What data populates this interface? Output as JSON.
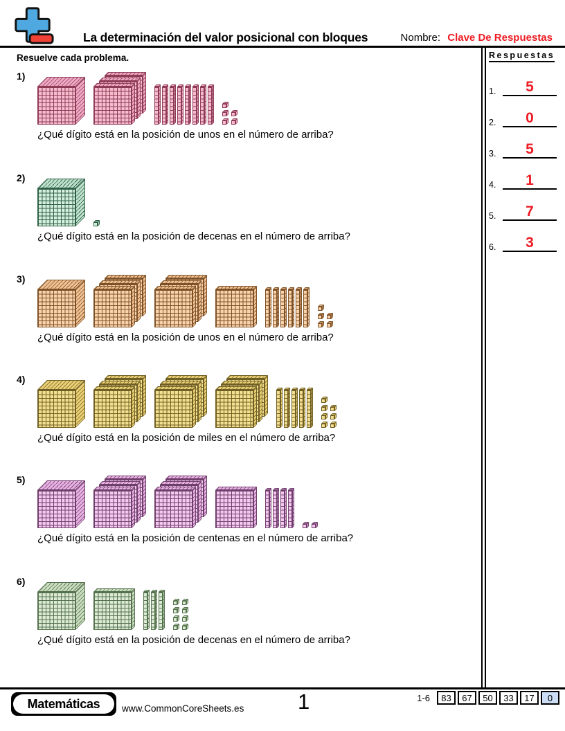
{
  "theme": {
    "accent_red": "#ED1C24",
    "score_highlight_bg": "#CBDDF4",
    "logo_plus_blue": "#4FA8DF",
    "logo_minus_red": "#EF4136"
  },
  "header": {
    "title": "La determinación del valor posicional con bloques",
    "name_label": "Nombre:",
    "name_value": "Clave De Respuestas"
  },
  "instruction": "Resuelve cada problema.",
  "answers_panel": {
    "title": "Respuestas",
    "items": [
      {
        "num": "1.",
        "value": "5"
      },
      {
        "num": "2.",
        "value": "0"
      },
      {
        "num": "3.",
        "value": "5"
      },
      {
        "num": "4.",
        "value": "1"
      },
      {
        "num": "5.",
        "value": "7"
      },
      {
        "num": "6.",
        "value": "3"
      }
    ]
  },
  "problems": [
    {
      "num": "1)",
      "question": "¿Qué dígito está en la posición de unos en el número de arriba?",
      "depicted_number": 1385,
      "blocks": {
        "thousand_cubes": 1,
        "hundred_flat_groups": [
          3
        ],
        "ten_rods": 8,
        "one_units": 5,
        "colors": {
          "face": "#F6BCD0",
          "shade": "#EFA9C4",
          "line": "#8E3B55"
        }
      }
    },
    {
      "num": "2)",
      "question": "¿Qué dígito está en la posición de decenas en el número de arriba?",
      "depicted_number": 1001,
      "blocks": {
        "thousand_cubes": 1,
        "hundred_flat_groups": [],
        "ten_rods": 0,
        "one_units": 1,
        "colors": {
          "face": "#D5EFDE",
          "shade": "#BFE3CD",
          "line": "#2F5F47"
        }
      }
    },
    {
      "num": "3)",
      "question": "¿Qué dígito está en la posición de unos en el número de arriba?",
      "depicted_number": 1765,
      "blocks": {
        "thousand_cubes": 1,
        "hundred_flat_groups": [
          3,
          3,
          1
        ],
        "ten_rods": 6,
        "one_units": 5,
        "colors": {
          "face": "#F9D3AC",
          "shade": "#F0C193",
          "line": "#7E5228"
        }
      }
    },
    {
      "num": "4)",
      "question": "¿Qué dígito está en la posición de miles en el número de arriba?",
      "depicted_number": 1957,
      "blocks": {
        "thousand_cubes": 1,
        "hundred_flat_groups": [
          3,
          3,
          3
        ],
        "ten_rods": 5,
        "one_units": 7,
        "colors": {
          "face": "#F3DF90",
          "shade": "#EACF74",
          "line": "#6F5F24"
        }
      }
    },
    {
      "num": "5)",
      "question": "¿Qué dígito está en la posición de centenas en el número de arriba?",
      "depicted_number": 1742,
      "blocks": {
        "thousand_cubes": 1,
        "hundred_flat_groups": [
          3,
          3,
          1
        ],
        "ten_rods": 4,
        "one_units": 2,
        "colors": {
          "face": "#F3C9EF",
          "shade": "#E9B2E4",
          "line": "#6F3F6B"
        }
      }
    },
    {
      "num": "6)",
      "question": "¿Qué dígito está en la posición de decenas en el número de arriba?",
      "depicted_number": 1138,
      "blocks": {
        "thousand_cubes": 1,
        "hundred_flat_groups": [
          1
        ],
        "ten_rods": 3,
        "one_units": 8,
        "colors": {
          "face": "#DDEBD5",
          "shade": "#CBDEC0",
          "line": "#55724F"
        }
      }
    }
  ],
  "footer": {
    "brand": "Matemáticas",
    "site": "www.CommonCoreSheets.es",
    "page_number": "1",
    "score_label": "1-6",
    "scores": [
      "83",
      "67",
      "50",
      "33",
      "17",
      "0"
    ]
  }
}
